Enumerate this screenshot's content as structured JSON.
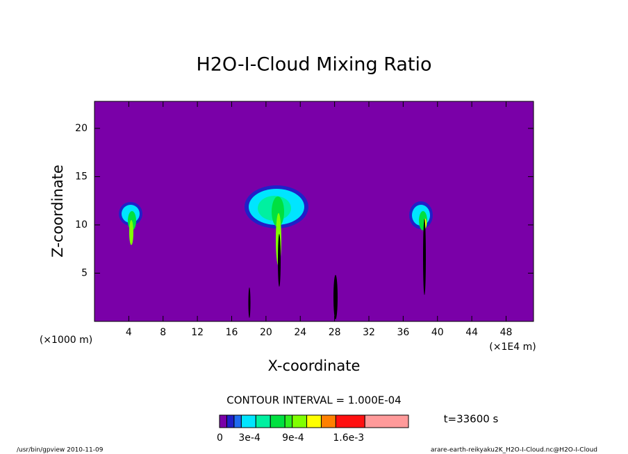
{
  "chart_data": {
    "type": "contour",
    "title": "H2O-I-Cloud Mixing Ratio",
    "xlabel": "X-coordinate",
    "ylabel": "Z-coordinate",
    "x_unit_left": "(×1000 m)",
    "x_unit_right": "(×1E4 m)",
    "xlim": [
      0,
      51.2
    ],
    "xticks": [
      4,
      8,
      12,
      16,
      20,
      24,
      28,
      32,
      36,
      40,
      44,
      48
    ],
    "ylim": [
      0,
      22.8
    ],
    "yticks": [
      5,
      10,
      15,
      20
    ],
    "background_color": "#7a00a8",
    "contour_interval": "CONTOUR INTERVAL = 1.000E-04",
    "time_label": "t=33600 s",
    "colorbar": {
      "lim": [
        0,
        0.0026
      ],
      "levels": [
        0,
        0.0001,
        0.0002,
        0.0003,
        0.0005,
        0.0007,
        0.0009,
        0.001,
        0.0012,
        0.0014,
        0.0016,
        0.002,
        0.0026
      ],
      "colors": [
        "#7a00a8",
        "#2020c8",
        "#1f6cf0",
        "#00e5ff",
        "#00f0a0",
        "#00e040",
        "#30f020",
        "#80ff00",
        "#ffff00",
        "#ff8000",
        "#ff1010",
        "#ff9a9a"
      ],
      "ticks": [
        0,
        {
          "value": 0.0003,
          "label": "3e-4"
        },
        {
          "value": 0.0009,
          "label": "9e-4"
        },
        {
          "value": 0.0016,
          "label": "1.6e-3"
        }
      ]
    },
    "footer_left": "/usr/bin/gpview  2010-11-09",
    "footer_right": "arare-earth-reikyaku2K_H2O-I-Cloud.nc@H2O-I-Cloud"
  }
}
